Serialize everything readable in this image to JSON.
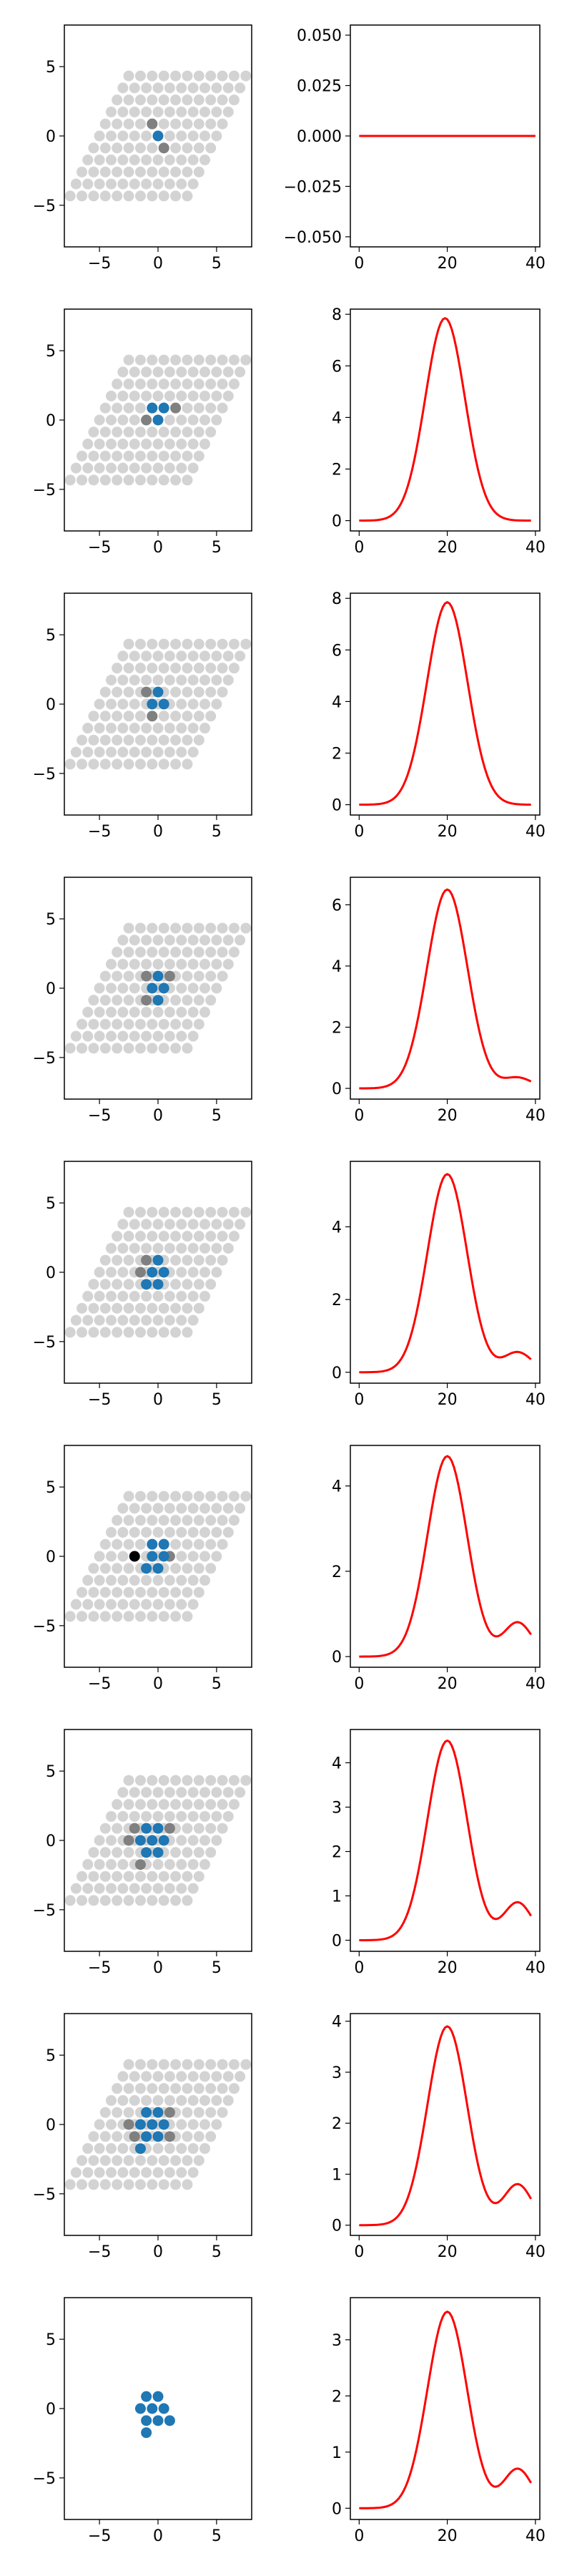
{
  "figure": {
    "colors": {
      "lattice": "#d3d3d3",
      "neighbor": "#808080",
      "cluster": "#1f77b4",
      "selected": "#000000",
      "curve": "#ff0000",
      "axes": "#000000"
    }
  },
  "chart_data": [
    {
      "row": 1,
      "panel": "lattice",
      "type": "scatter",
      "xlim": [
        -8,
        8
      ],
      "ylim": [
        -8,
        8
      ],
      "xticks": [
        -5,
        0,
        5
      ],
      "yticks": [
        -5,
        0,
        5
      ],
      "show_lattice": true,
      "cluster": [
        [
          0,
          0
        ]
      ],
      "neighbors": [
        [
          -0.5,
          0.87
        ],
        [
          0.5,
          -0.87
        ]
      ],
      "selected": []
    },
    {
      "row": 1,
      "panel": "curve",
      "type": "line",
      "xlim": [
        -2,
        41
      ],
      "ylim": [
        -0.055,
        0.055
      ],
      "xticks": [
        0,
        20,
        40
      ],
      "yticks": [
        -0.05,
        -0.025,
        0.0,
        0.025,
        0.05
      ],
      "ytick_labels": [
        "−0.050",
        "−0.025",
        "0.000",
        "0.025",
        "0.050"
      ],
      "peak": 0,
      "peak_x": 20,
      "width": 4.5,
      "tail": 0,
      "x": [
        0,
        40
      ],
      "y": [
        0,
        0
      ]
    },
    {
      "row": 2,
      "panel": "lattice",
      "type": "scatter",
      "xlim": [
        -8,
        8
      ],
      "ylim": [
        -8,
        8
      ],
      "xticks": [
        -5,
        0,
        5
      ],
      "yticks": [
        -5,
        0,
        5
      ],
      "show_lattice": true,
      "cluster": [
        [
          -0.5,
          0.87
        ],
        [
          0.5,
          0.87
        ],
        [
          0,
          0
        ]
      ],
      "neighbors": [
        [
          -1,
          0
        ],
        [
          1.5,
          0.87
        ]
      ],
      "selected": []
    },
    {
      "row": 2,
      "panel": "curve",
      "type": "line",
      "xlim": [
        -2,
        41
      ],
      "ylim": [
        -0.4,
        8.2
      ],
      "xticks": [
        0,
        20,
        40
      ],
      "yticks": [
        0,
        2,
        4,
        6,
        8
      ],
      "peak": 7.85,
      "peak_x": 19.5,
      "width": 4.5,
      "tail": 0
    },
    {
      "row": 3,
      "panel": "lattice",
      "type": "scatter",
      "xlim": [
        -8,
        8
      ],
      "ylim": [
        -8,
        8
      ],
      "xticks": [
        -5,
        0,
        5
      ],
      "yticks": [
        -5,
        0,
        5
      ],
      "show_lattice": true,
      "cluster": [
        [
          -0.5,
          0
        ],
        [
          0.5,
          0
        ],
        [
          0,
          0.87
        ]
      ],
      "neighbors": [
        [
          -1,
          0.87
        ],
        [
          -0.5,
          -0.87
        ]
      ],
      "selected": []
    },
    {
      "row": 3,
      "panel": "curve",
      "type": "line",
      "xlim": [
        -2,
        41
      ],
      "ylim": [
        -0.4,
        8.2
      ],
      "xticks": [
        0,
        20,
        40
      ],
      "yticks": [
        0,
        2,
        4,
        6,
        8
      ],
      "peak": 7.85,
      "peak_x": 20,
      "width": 4.6,
      "tail": 0
    },
    {
      "row": 4,
      "panel": "lattice",
      "type": "scatter",
      "xlim": [
        -8,
        8
      ],
      "ylim": [
        -8,
        8
      ],
      "xticks": [
        -5,
        0,
        5
      ],
      "yticks": [
        -5,
        0,
        5
      ],
      "show_lattice": true,
      "cluster": [
        [
          -0.5,
          0
        ],
        [
          0.5,
          0
        ],
        [
          0,
          0.87
        ],
        [
          0,
          -0.87
        ]
      ],
      "neighbors": [
        [
          -1,
          0.87
        ],
        [
          1,
          0.87
        ],
        [
          -1,
          -0.87
        ]
      ],
      "selected": []
    },
    {
      "row": 4,
      "panel": "curve",
      "type": "line",
      "xlim": [
        -2,
        41
      ],
      "ylim": [
        -0.35,
        6.9
      ],
      "xticks": [
        0,
        20,
        40
      ],
      "yticks": [
        0,
        2,
        4,
        6
      ],
      "peak": 6.5,
      "peak_x": 20,
      "width": 4.6,
      "tail": 0.35
    },
    {
      "row": 5,
      "panel": "lattice",
      "type": "scatter",
      "xlim": [
        -8,
        8
      ],
      "ylim": [
        -8,
        8
      ],
      "xticks": [
        -5,
        0,
        5
      ],
      "yticks": [
        -5,
        0,
        5
      ],
      "show_lattice": true,
      "cluster": [
        [
          -0.5,
          0
        ],
        [
          0.5,
          0
        ],
        [
          0,
          0.87
        ],
        [
          0,
          -0.87
        ],
        [
          -1,
          -0.87
        ]
      ],
      "neighbors": [
        [
          -1,
          0.87
        ],
        [
          -1.5,
          0
        ]
      ],
      "selected": []
    },
    {
      "row": 5,
      "panel": "curve",
      "type": "line",
      "xlim": [
        -2,
        41
      ],
      "ylim": [
        -0.3,
        5.8
      ],
      "xticks": [
        0,
        20,
        40
      ],
      "yticks": [
        0,
        2,
        4
      ],
      "peak": 5.45,
      "peak_x": 20,
      "width": 4.5,
      "tail": 0.55
    },
    {
      "row": 6,
      "panel": "lattice",
      "type": "scatter",
      "xlim": [
        -8,
        8
      ],
      "ylim": [
        -8,
        8
      ],
      "xticks": [
        -5,
        0,
        5
      ],
      "yticks": [
        -5,
        0,
        5
      ],
      "show_lattice": true,
      "cluster": [
        [
          -0.5,
          0.87
        ],
        [
          0.5,
          0.87
        ],
        [
          -0.5,
          0
        ],
        [
          0.5,
          0
        ],
        [
          -1,
          -0.87
        ],
        [
          0,
          -0.87
        ]
      ],
      "neighbors": [
        [
          1,
          0
        ]
      ],
      "selected": [
        [
          -2,
          0
        ]
      ]
    },
    {
      "row": 6,
      "panel": "curve",
      "type": "line",
      "xlim": [
        -2,
        41
      ],
      "ylim": [
        -0.25,
        4.95
      ],
      "xticks": [
        0,
        20,
        40
      ],
      "yticks": [
        0,
        2,
        4
      ],
      "peak": 4.7,
      "peak_x": 20,
      "width": 4.5,
      "tail": 0.8
    },
    {
      "row": 7,
      "panel": "lattice",
      "type": "scatter",
      "xlim": [
        -8,
        8
      ],
      "ylim": [
        -8,
        8
      ],
      "xticks": [
        -5,
        0,
        5
      ],
      "yticks": [
        -5,
        0,
        5
      ],
      "show_lattice": true,
      "cluster": [
        [
          -1,
          0.87
        ],
        [
          0,
          0.87
        ],
        [
          -1.5,
          0
        ],
        [
          -0.5,
          0
        ],
        [
          0.5,
          0
        ],
        [
          -1,
          -0.87
        ],
        [
          0,
          -0.87
        ]
      ],
      "neighbors": [
        [
          -2,
          0.87
        ],
        [
          -2.5,
          0
        ],
        [
          1,
          0.87
        ],
        [
          -1.5,
          -1.74
        ]
      ],
      "selected": []
    },
    {
      "row": 7,
      "panel": "curve",
      "type": "line",
      "xlim": [
        -2,
        41
      ],
      "ylim": [
        -0.25,
        4.75
      ],
      "xticks": [
        0,
        20,
        40
      ],
      "yticks": [
        0,
        1,
        2,
        3,
        4
      ],
      "peak": 4.5,
      "peak_x": 20,
      "width": 4.5,
      "tail": 0.85
    },
    {
      "row": 8,
      "panel": "lattice",
      "type": "scatter",
      "xlim": [
        -8,
        8
      ],
      "ylim": [
        -8,
        8
      ],
      "xticks": [
        -5,
        0,
        5
      ],
      "yticks": [
        -5,
        0,
        5
      ],
      "show_lattice": true,
      "cluster": [
        [
          -1,
          0.87
        ],
        [
          0,
          0.87
        ],
        [
          -1.5,
          0
        ],
        [
          -0.5,
          0
        ],
        [
          0.5,
          0
        ],
        [
          -1,
          -0.87
        ],
        [
          0,
          -0.87
        ],
        [
          -1.5,
          -1.74
        ]
      ],
      "neighbors": [
        [
          -2.5,
          0
        ],
        [
          1,
          0.87
        ],
        [
          -2,
          -0.87
        ],
        [
          1,
          -0.87
        ]
      ],
      "selected": []
    },
    {
      "row": 8,
      "panel": "curve",
      "type": "line",
      "xlim": [
        -2,
        41
      ],
      "ylim": [
        -0.2,
        4.15
      ],
      "xticks": [
        0,
        20,
        40
      ],
      "yticks": [
        0,
        1,
        2,
        3,
        4
      ],
      "peak": 3.9,
      "peak_x": 20,
      "width": 4.5,
      "tail": 0.8
    },
    {
      "row": 9,
      "panel": "lattice",
      "type": "scatter",
      "xlim": [
        -8,
        8
      ],
      "ylim": [
        -8,
        8
      ],
      "xticks": [
        -5,
        0,
        5
      ],
      "yticks": [
        -5,
        0,
        5
      ],
      "show_lattice": false,
      "cluster": [
        [
          -1,
          0.87
        ],
        [
          0,
          0.87
        ],
        [
          -1.5,
          0
        ],
        [
          -0.5,
          0
        ],
        [
          0.5,
          0
        ],
        [
          -1,
          -0.87
        ],
        [
          0,
          -0.87
        ],
        [
          1,
          -0.87
        ],
        [
          -1,
          -1.74
        ]
      ],
      "neighbors": [],
      "selected": []
    },
    {
      "row": 9,
      "panel": "curve",
      "type": "line",
      "xlim": [
        -2,
        41
      ],
      "ylim": [
        -0.2,
        3.75
      ],
      "xticks": [
        0,
        20,
        40
      ],
      "yticks": [
        0,
        1,
        2,
        3
      ],
      "peak": 3.5,
      "peak_x": 20,
      "width": 4.5,
      "tail": 0.7
    }
  ]
}
